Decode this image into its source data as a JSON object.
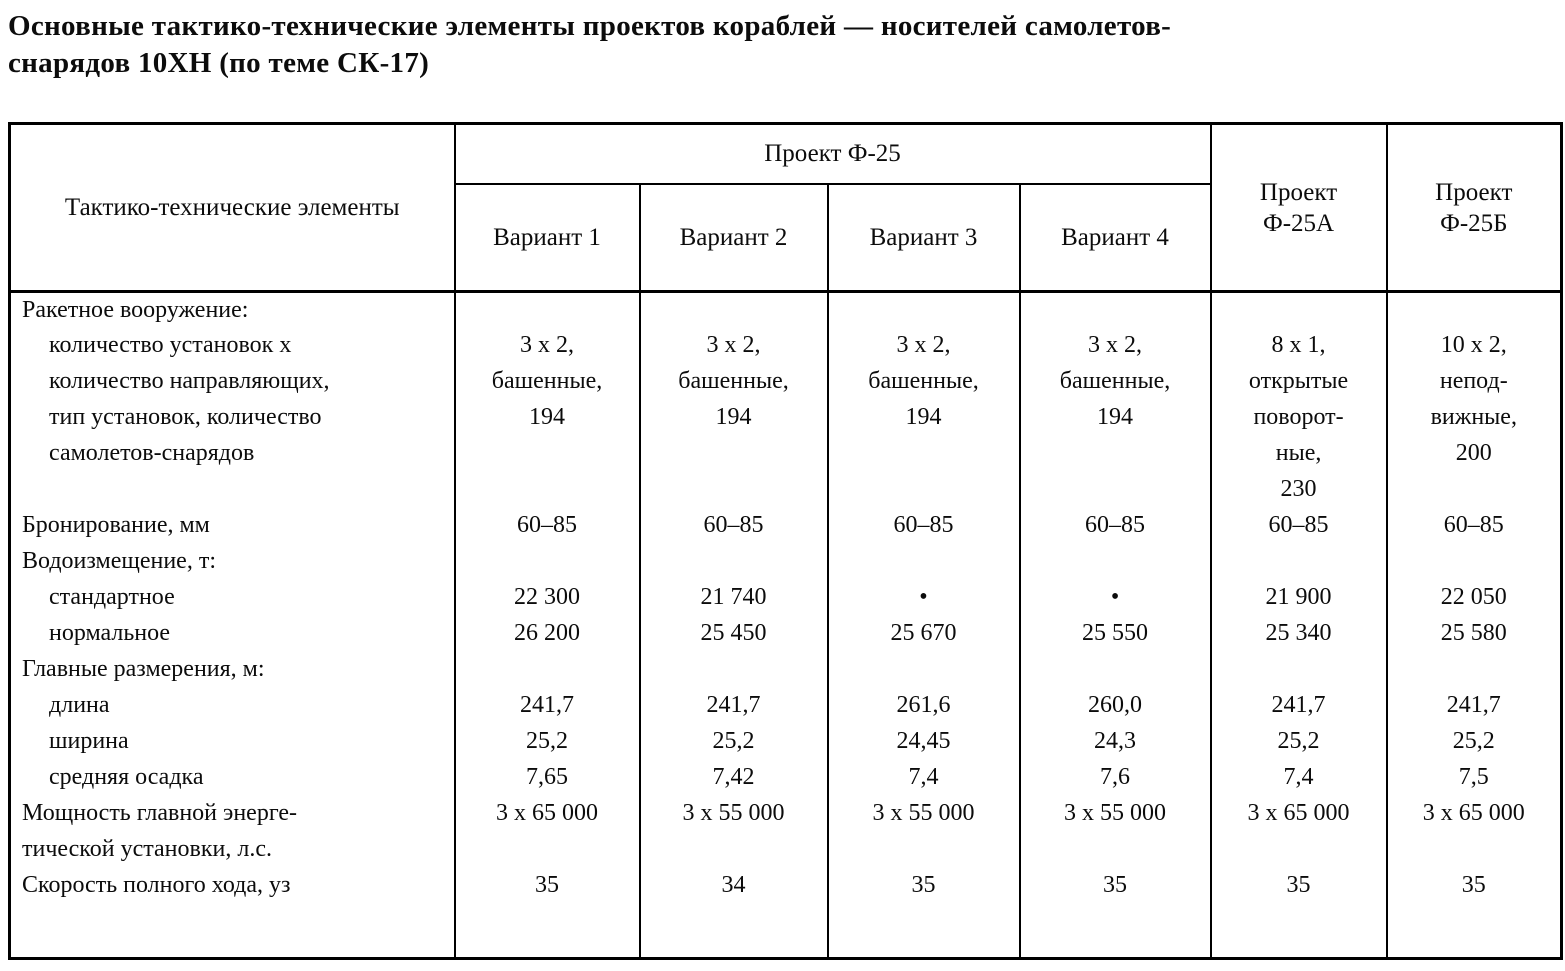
{
  "page": {
    "title_line1": "Основные тактико-технические элементы проектов кораблей — носителей самолетов-",
    "title_line2": "снарядов 10ХН (по теме СК-17)"
  },
  "table": {
    "header": {
      "col1": "Тактико-технические элементы",
      "group": "Проект Ф-25",
      "variants": [
        "Вариант 1",
        "Вариант 2",
        "Вариант 3",
        "Вариант 4"
      ],
      "f25a": "Проект Ф-25А",
      "f25b": "Проект Ф-25Б"
    },
    "rows": [
      {
        "label": "Ракетное вооружение:",
        "indent": false,
        "cells": [
          "",
          "",
          "",
          "",
          "",
          ""
        ]
      },
      {
        "label": "количество установок х",
        "indent": true,
        "cells": [
          "3 x 2,",
          "3 x 2,",
          "3 x 2,",
          "3 x 2,",
          "8 x 1,",
          "10 x 2,"
        ]
      },
      {
        "label": "количество направляющих,",
        "indent": true,
        "cells": [
          "башенные,",
          "башенные,",
          "башенные,",
          "башенные,",
          "открытые",
          "непод-"
        ]
      },
      {
        "label": "тип установок, количество",
        "indent": true,
        "cells": [
          "194",
          "194",
          "194",
          "194",
          "поворот-",
          "вижные,"
        ]
      },
      {
        "label": "самолетов-снарядов",
        "indent": true,
        "cells": [
          "",
          "",
          "",
          "",
          "ные,",
          "200"
        ]
      },
      {
        "label": "",
        "indent": false,
        "cells": [
          "",
          "",
          "",
          "",
          "230",
          ""
        ]
      },
      {
        "label": "Бронирование, мм",
        "indent": false,
        "cells": [
          "60–85",
          "60–85",
          "60–85",
          "60–85",
          "60–85",
          "60–85"
        ]
      },
      {
        "label": "Водоизмещение, т:",
        "indent": false,
        "cells": [
          "",
          "",
          "",
          "",
          "",
          ""
        ]
      },
      {
        "label": "стандартное",
        "indent": true,
        "cells": [
          "22 300",
          "21 740",
          "•",
          "•",
          "21 900",
          "22 050"
        ]
      },
      {
        "label": "нормальное",
        "indent": true,
        "cells": [
          "26 200",
          "25 450",
          "25 670",
          "25 550",
          "25 340",
          "25 580"
        ]
      },
      {
        "label": "Главные размерения, м:",
        "indent": false,
        "cells": [
          "",
          "",
          "",
          "",
          "",
          ""
        ]
      },
      {
        "label": "длина",
        "indent": true,
        "cells": [
          "241,7",
          "241,7",
          "261,6",
          "260,0",
          "241,7",
          "241,7"
        ]
      },
      {
        "label": "ширина",
        "indent": true,
        "cells": [
          "25,2",
          "25,2",
          "24,45",
          "24,3",
          "25,2",
          "25,2"
        ]
      },
      {
        "label": "средняя осадка",
        "indent": true,
        "cells": [
          "7,65",
          "7,42",
          "7,4",
          "7,6",
          "7,4",
          "7,5"
        ]
      },
      {
        "label": "Мощность главной энерге-",
        "indent": false,
        "cells": [
          "3 x 65 000",
          "3 x 55 000",
          "3 x 55 000",
          "3 x 55 000",
          "3 x 65 000",
          "3 x 65 000"
        ]
      },
      {
        "label": "тической установки, л.с.",
        "indent": false,
        "cells": [
          "",
          "",
          "",
          "",
          "",
          ""
        ]
      },
      {
        "label": "Скорость полного хода, уз",
        "indent": false,
        "cells": [
          "35",
          "34",
          "35",
          "35",
          "35",
          "35"
        ]
      }
    ]
  }
}
